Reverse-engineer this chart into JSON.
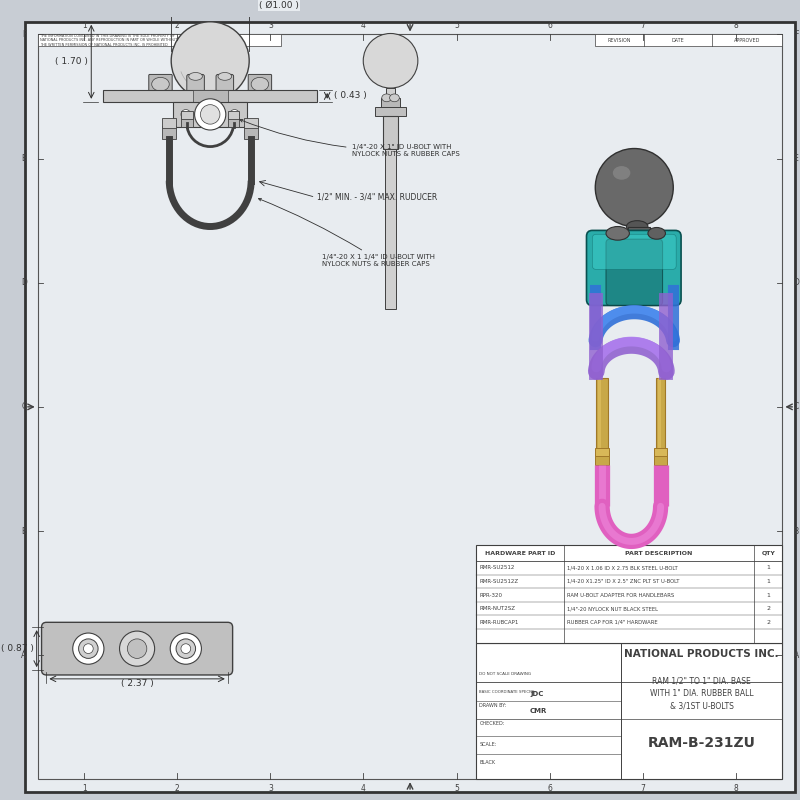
{
  "bg_color": "#c8cdd4",
  "paper_color": "#e8ecf0",
  "line_color": "#404040",
  "dim_color": "#303030",
  "title": "RAM-B-231ZU",
  "company": "NATIONAL PRODUCTS INC.",
  "desc_line1": "RAM 1/2\" TO 1\" DIA. BASE",
  "desc_line2": "WITH 1\" DIA. RUBBER BALL",
  "desc_line3": "& 3/1ST U-BOLTS",
  "note1": "1/4\"-20 X 1\" ID U-BOLT WITH\nNYLOCK NUTS & RUBBER CAPS",
  "note2": "1/2\" MIN. - 3/4\" MAX. RUDUCER",
  "note3": "1/4\"-20 X 1 1/4\" ID U-BOLT WITH\nNYLOCK NUTS & RUBBER CAPS",
  "hardware": [
    [
      "RMR-SU2512",
      "1/4-20 X 1.06 ID X 2.75 BLK STEEL U-BOLT",
      "1"
    ],
    [
      "RMR-SU2512Z",
      "1/4-20 X1.25\" ID X 2.5\" ZNC PLT ST U-BOLT",
      "1"
    ],
    [
      "RPR-320",
      "RAM U-BOLT ADAPTER FOR HANDLEBARS",
      "1"
    ],
    [
      "RMR-NUT2SZ",
      "1/4\"-20 NYLOCK NUT BLACK STEEL",
      "2"
    ],
    [
      "RMR-RUBCAP1",
      "RUBBER CAP FOR 1/4\" HARDWARE",
      "2"
    ]
  ],
  "col_headers": [
    "HARDWARE PART ID",
    "PART DESCRIPTION",
    "QTY"
  ],
  "border_color": "#555555"
}
